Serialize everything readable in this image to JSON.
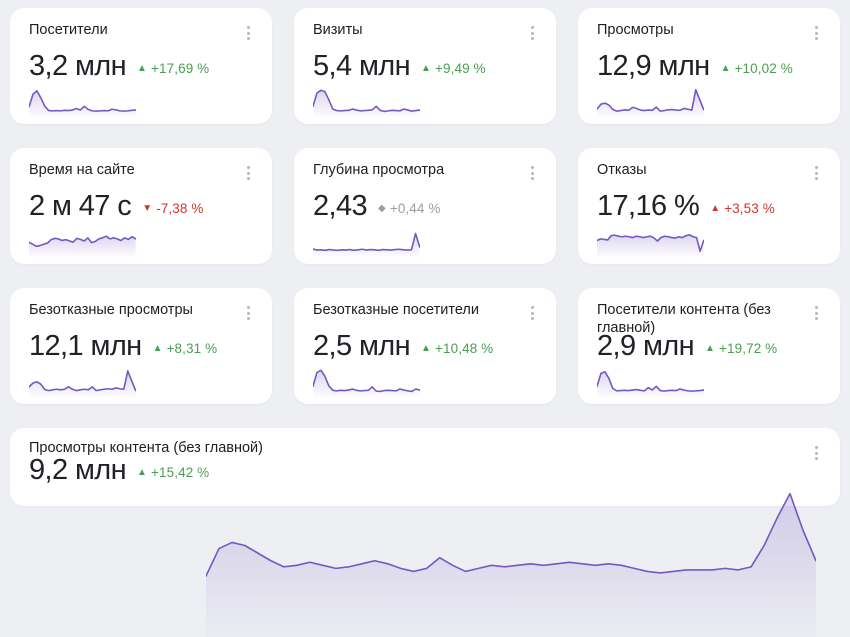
{
  "app": {
    "name": "metrics-dashboard"
  },
  "colors": {
    "page_bg": "#edeff3",
    "card_bg": "#ffffff",
    "title_text": "#1d1e22",
    "value_text": "#212227",
    "positive": "#4a9e53",
    "negative": "#d0362d",
    "neutral": "#9a9da6",
    "spark_line": "#7558c0",
    "menu_dots": "#b4b7bf"
  },
  "icons": {
    "menu": "kebab-vertical-dots",
    "trend_up": "▲",
    "trend_down": "▼",
    "trend_flat": "◆"
  },
  "cards": [
    {
      "title": "Посетители",
      "value": "3,2 млн",
      "change": "+17,69 %",
      "indicator": "▲",
      "sentiment": "positive",
      "spark": [
        0.28,
        0.75,
        0.88,
        0.62,
        0.3,
        0.14,
        0.13,
        0.14,
        0.13,
        0.15,
        0.14,
        0.16,
        0.22,
        0.16,
        0.3,
        0.18,
        0.13,
        0.12,
        0.13,
        0.14,
        0.13,
        0.19,
        0.17,
        0.13,
        0.12,
        0.13,
        0.15,
        0.16
      ]
    },
    {
      "title": "Визиты",
      "value": "5,4 млн",
      "change": "+9,49 %",
      "indicator": "▲",
      "sentiment": "positive",
      "spark": [
        0.3,
        0.8,
        0.9,
        0.85,
        0.55,
        0.2,
        0.14,
        0.13,
        0.14,
        0.15,
        0.2,
        0.16,
        0.13,
        0.14,
        0.15,
        0.17,
        0.3,
        0.15,
        0.11,
        0.13,
        0.15,
        0.14,
        0.13,
        0.2,
        0.16,
        0.12,
        0.14,
        0.16
      ]
    },
    {
      "title": "Просмотры",
      "value": "12,9 млн",
      "change": "+10,02 %",
      "indicator": "▲",
      "sentiment": "positive",
      "spark": [
        0.2,
        0.38,
        0.42,
        0.35,
        0.18,
        0.12,
        0.14,
        0.17,
        0.15,
        0.26,
        0.22,
        0.16,
        0.14,
        0.16,
        0.15,
        0.27,
        0.12,
        0.14,
        0.17,
        0.18,
        0.16,
        0.15,
        0.22,
        0.19,
        0.16,
        0.92,
        0.55,
        0.18
      ]
    },
    {
      "title": "Время на сайте",
      "value": "2 м 47 с",
      "change": "-7,38 %",
      "indicator": "▼",
      "sentiment": "negative",
      "spark": [
        0.45,
        0.38,
        0.3,
        0.33,
        0.38,
        0.42,
        0.55,
        0.6,
        0.58,
        0.52,
        0.55,
        0.5,
        0.46,
        0.6,
        0.56,
        0.5,
        0.62,
        0.44,
        0.48,
        0.58,
        0.62,
        0.68,
        0.58,
        0.62,
        0.58,
        0.52,
        0.62,
        0.56,
        0.66,
        0.58
      ]
    },
    {
      "title": "Глубина просмотра",
      "value": "2,43",
      "change": "+0,44 %",
      "indicator": "◆",
      "sentiment": "neutral",
      "spark": [
        0.2,
        0.16,
        0.17,
        0.15,
        0.18,
        0.16,
        0.15,
        0.17,
        0.16,
        0.18,
        0.15,
        0.17,
        0.19,
        0.16,
        0.18,
        0.17,
        0.15,
        0.18,
        0.17,
        0.16,
        0.18,
        0.19,
        0.17,
        0.16,
        0.17,
        0.78,
        0.28
      ]
    },
    {
      "title": "Отказы",
      "value": "17,16 %",
      "change": "+3,53 %",
      "indicator": "▲",
      "sentiment": "negative",
      "spark": [
        0.52,
        0.58,
        0.56,
        0.54,
        0.7,
        0.72,
        0.68,
        0.66,
        0.68,
        0.66,
        0.63,
        0.68,
        0.66,
        0.63,
        0.66,
        0.68,
        0.62,
        0.5,
        0.63,
        0.68,
        0.66,
        0.63,
        0.61,
        0.66,
        0.63,
        0.7,
        0.73,
        0.66,
        0.63,
        0.12,
        0.52
      ]
    },
    {
      "title": "Безотказные просмотры",
      "value": "12,1 млн",
      "change": "+8,31 %",
      "indicator": "▲",
      "sentiment": "positive",
      "spark": [
        0.28,
        0.42,
        0.47,
        0.38,
        0.18,
        0.14,
        0.17,
        0.19,
        0.17,
        0.19,
        0.28,
        0.19,
        0.14,
        0.17,
        0.19,
        0.17,
        0.28,
        0.14,
        0.17,
        0.19,
        0.21,
        0.19,
        0.24,
        0.21,
        0.19,
        0.88,
        0.5,
        0.14
      ]
    },
    {
      "title": "Безотказные посетители",
      "value": "2,5 млн",
      "change": "+10,48 %",
      "indicator": "▲",
      "sentiment": "positive",
      "spark": [
        0.3,
        0.82,
        0.9,
        0.68,
        0.32,
        0.15,
        0.13,
        0.15,
        0.14,
        0.16,
        0.2,
        0.15,
        0.13,
        0.14,
        0.15,
        0.28,
        0.12,
        0.11,
        0.14,
        0.15,
        0.14,
        0.13,
        0.2,
        0.16,
        0.13,
        0.11,
        0.2,
        0.16
      ]
    },
    {
      "title": "Посетители контента (без главной)",
      "value": "2,9 млн",
      "change": "+19,72 %",
      "indicator": "▲",
      "sentiment": "positive",
      "spark": [
        0.3,
        0.78,
        0.85,
        0.6,
        0.22,
        0.13,
        0.14,
        0.15,
        0.14,
        0.16,
        0.18,
        0.15,
        0.13,
        0.25,
        0.16,
        0.3,
        0.14,
        0.12,
        0.14,
        0.15,
        0.14,
        0.2,
        0.16,
        0.13,
        0.12,
        0.13,
        0.14,
        0.16
      ]
    },
    {
      "title": "Просмотры контента (без главной)",
      "value": "9,2 млн",
      "change": "+15,42 %",
      "indicator": "▲",
      "sentiment": "positive",
      "spark": [
        0.3,
        0.48,
        0.52,
        0.5,
        0.45,
        0.4,
        0.36,
        0.37,
        0.39,
        0.37,
        0.35,
        0.36,
        0.38,
        0.4,
        0.38,
        0.35,
        0.33,
        0.35,
        0.42,
        0.37,
        0.33,
        0.35,
        0.37,
        0.36,
        0.37,
        0.38,
        0.37,
        0.38,
        0.39,
        0.38,
        0.37,
        0.38,
        0.37,
        0.35,
        0.33,
        0.32,
        0.33,
        0.34,
        0.34,
        0.34,
        0.35,
        0.34,
        0.36,
        0.5,
        0.68,
        0.84,
        0.6,
        0.4
      ]
    }
  ],
  "chart_data": {
    "type": "line",
    "note": "sparklines per metric card, normalized 0-1",
    "series_source": "cards[].spark"
  }
}
